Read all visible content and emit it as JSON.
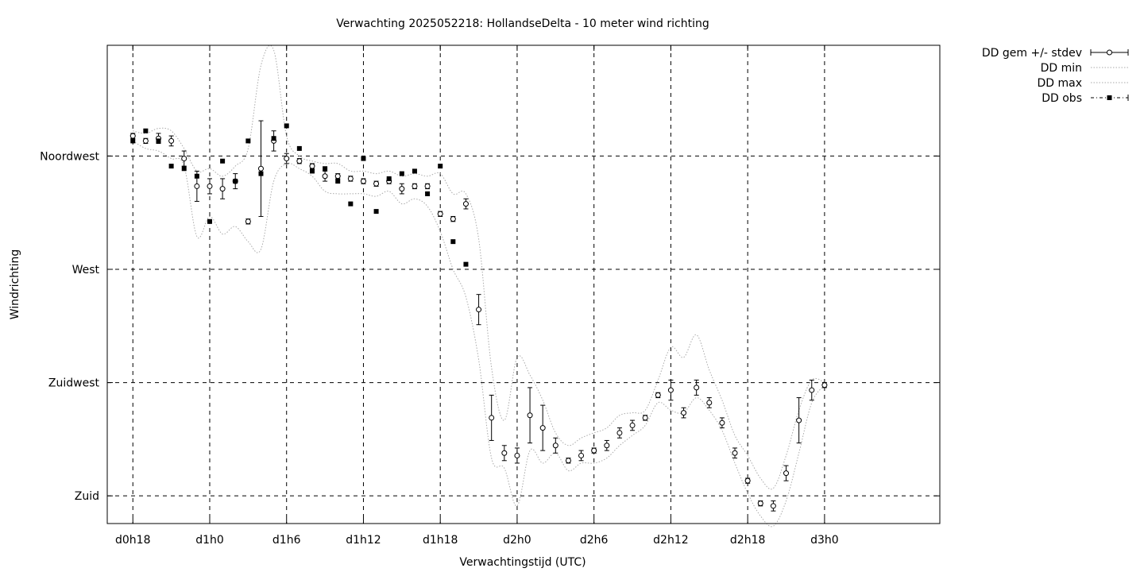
{
  "chart_data": {
    "type": "scatter",
    "title": "Verwachting 2025052218: HollandseDelta - 10 meter wind richting",
    "xlabel": "Verwachtingstijd (UTC)",
    "ylabel": "Windrichting",
    "xlim": [
      16,
      81
    ],
    "ylim": [
      169,
      359
    ],
    "grid": true,
    "legend_position": "outside-top-right",
    "x_ticks": [
      {
        "value": 18,
        "label": "d0h18"
      },
      {
        "value": 24,
        "label": "d1h0"
      },
      {
        "value": 30,
        "label": "d1h6"
      },
      {
        "value": 36,
        "label": "d1h12"
      },
      {
        "value": 42,
        "label": "d1h18"
      },
      {
        "value": 48,
        "label": "d2h0"
      },
      {
        "value": 54,
        "label": "d2h6"
      },
      {
        "value": 60,
        "label": "d2h12"
      },
      {
        "value": 66,
        "label": "d2h18"
      },
      {
        "value": 72,
        "label": "d3h0"
      }
    ],
    "y_ticks": [
      {
        "value": 180,
        "label": "Zuid"
      },
      {
        "value": 225,
        "label": "Zuidwest"
      },
      {
        "value": 270,
        "label": "West"
      },
      {
        "value": 315,
        "label": "Noordwest"
      }
    ],
    "legend": [
      {
        "label": "DD gem +/- stdev",
        "style": "errorbar-open-circle"
      },
      {
        "label": "DD min",
        "style": "dotted"
      },
      {
        "label": "DD max",
        "style": "dotted"
      },
      {
        "label": "DD obs",
        "style": "filled-square"
      }
    ],
    "colors": {
      "marks": "#000000",
      "minmax": "#aaaaaa",
      "grid": "#000000"
    },
    "series": [
      {
        "name": "DD gem +/- stdev",
        "x": [
          18,
          19,
          20,
          21,
          22,
          23,
          24,
          25,
          26,
          27,
          28,
          29,
          30,
          31,
          32,
          33,
          34,
          35,
          36,
          37,
          38,
          39,
          40,
          41,
          42,
          43,
          44,
          45,
          46,
          47,
          48,
          49,
          50,
          51,
          52,
          53,
          54,
          55,
          56,
          57,
          58,
          59,
          60,
          61,
          62,
          63,
          64,
          65,
          66,
          67,
          68,
          69,
          70,
          71,
          72
        ],
        "values": [
          323,
          321,
          322,
          321,
          314,
          303,
          303,
          302,
          305,
          289,
          310,
          321,
          314,
          313,
          311,
          307,
          307,
          306,
          305,
          304,
          305,
          302,
          303,
          303,
          292,
          290,
          296,
          254,
          211,
          197,
          196,
          212,
          207,
          200,
          194,
          196,
          198,
          200,
          205,
          208,
          211,
          220,
          222,
          213,
          223,
          217,
          209,
          197,
          186,
          177,
          176,
          189,
          210,
          222,
          224
        ],
        "stdev": [
          1,
          1,
          2,
          2,
          3,
          6,
          3,
          4,
          3,
          1,
          19,
          4,
          2,
          1,
          1,
          2,
          1,
          1,
          1,
          1,
          1,
          2,
          1,
          1,
          1,
          1,
          2,
          6,
          9,
          3,
          3,
          11,
          9,
          3,
          1,
          2,
          1,
          2,
          2,
          2,
          1,
          1,
          4,
          2,
          3,
          2,
          2,
          2,
          1,
          1,
          2,
          3,
          9,
          4,
          1
        ]
      },
      {
        "name": "DD min",
        "x": [
          18,
          19,
          20,
          21,
          22,
          23,
          24,
          25,
          26,
          27,
          28,
          29,
          30,
          31,
          32,
          33,
          34,
          35,
          36,
          37,
          38,
          39,
          40,
          41,
          42,
          43,
          44,
          45,
          46,
          47,
          48,
          49,
          50,
          51,
          52,
          53,
          54,
          55,
          56,
          57,
          58,
          59,
          60,
          61,
          62,
          63,
          64,
          65,
          66,
          67,
          68,
          69,
          70,
          71,
          72
        ],
        "values": [
          321,
          318,
          317,
          314,
          311,
          283,
          291,
          284,
          287,
          281,
          278,
          305,
          312,
          310,
          307,
          301,
          300,
          300,
          300,
          299,
          301,
          296,
          298,
          295,
          285,
          270,
          259,
          234,
          195,
          191,
          176,
          198,
          193,
          197,
          190,
          193,
          193,
          195,
          200,
          204,
          208,
          217,
          214,
          213,
          219,
          214,
          206,
          193,
          181,
          172,
          168,
          178,
          197,
          217,
          224
        ]
      },
      {
        "name": "DD max",
        "x": [
          18,
          19,
          20,
          21,
          22,
          23,
          24,
          25,
          26,
          27,
          28,
          29,
          30,
          31,
          32,
          33,
          34,
          35,
          36,
          37,
          38,
          39,
          40,
          41,
          42,
          43,
          44,
          45,
          46,
          47,
          48,
          49,
          50,
          51,
          52,
          53,
          54,
          55,
          56,
          57,
          58,
          59,
          60,
          61,
          62,
          63,
          64,
          65,
          66,
          67,
          68,
          69,
          70,
          71,
          72
        ],
        "values": [
          325,
          324,
          326,
          325,
          318,
          309,
          310,
          307,
          311,
          318,
          351,
          357,
          323,
          315,
          313,
          312,
          312,
          309,
          309,
          308,
          309,
          307,
          308,
          307,
          308,
          300,
          300,
          282,
          231,
          210,
          235,
          228,
          218,
          205,
          200,
          203,
          205,
          207,
          212,
          213,
          214,
          226,
          239,
          235,
          244,
          230,
          218,
          204,
          196,
          187,
          183,
          196,
          214,
          226,
          225
        ]
      },
      {
        "name": "DD obs",
        "x": [
          18,
          19,
          20,
          21,
          22,
          23,
          24,
          25,
          26,
          27,
          28,
          29,
          30,
          31,
          32,
          33,
          34,
          35,
          36,
          37,
          38,
          39,
          40,
          41,
          42,
          43,
          44
        ],
        "values": [
          321,
          325,
          321,
          311,
          310,
          307,
          289,
          313,
          305,
          321,
          308,
          322,
          327,
          318,
          309,
          310,
          305,
          296,
          314,
          293,
          306,
          308,
          309,
          300,
          311,
          281,
          272
        ]
      }
    ]
  }
}
